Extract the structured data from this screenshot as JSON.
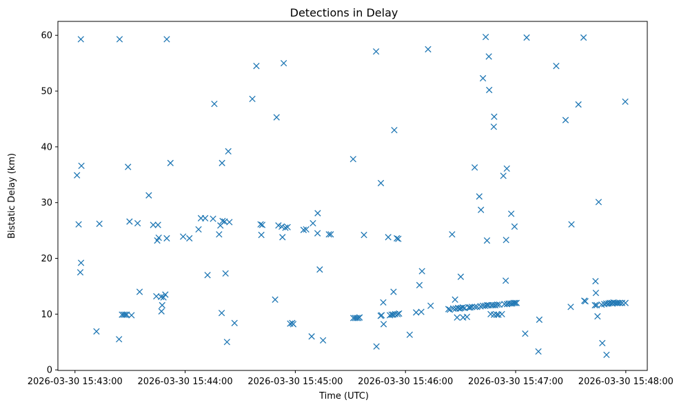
{
  "chart_data": {
    "type": "scatter",
    "title": "Detections in Delay",
    "xlabel": "Time (UTC)",
    "ylabel": "Bistatic Delay (km)",
    "marker": "x",
    "color": "#1f77b4",
    "xlim_seconds": [
      -9.3,
      311.7
    ],
    "ylim": [
      -0.1,
      62.5
    ],
    "x_ticks": [
      {
        "s": 0,
        "label": "2026-03-30 15:43:00"
      },
      {
        "s": 60,
        "label": "2026-03-30 15:44:00"
      },
      {
        "s": 120,
        "label": "2026-03-30 15:45:00"
      },
      {
        "s": 180,
        "label": "2026-03-30 15:46:00"
      },
      {
        "s": 240,
        "label": "2026-03-30 15:47:00"
      },
      {
        "s": 300,
        "label": "2026-03-30 15:48:00"
      }
    ],
    "y_ticks": [
      {
        "v": 0,
        "label": "0"
      },
      {
        "v": 10,
        "label": "10"
      },
      {
        "v": 20,
        "label": "20"
      },
      {
        "v": 30,
        "label": "30"
      },
      {
        "v": 40,
        "label": "40"
      },
      {
        "v": 50,
        "label": "50"
      },
      {
        "v": 60,
        "label": "60"
      }
    ],
    "x_unit": "seconds after 2026-03-30 15:43:00 UTC",
    "points": [
      [
        1.1,
        34.9
      ],
      [
        2.0,
        26.1
      ],
      [
        2.9,
        17.5
      ],
      [
        3.2,
        59.3
      ],
      [
        3.3,
        19.2
      ],
      [
        3.5,
        36.6
      ],
      [
        11.7,
        6.9
      ],
      [
        13.3,
        26.2
      ],
      [
        24.3,
        59.3
      ],
      [
        24.0,
        5.5
      ],
      [
        25.6,
        9.9
      ],
      [
        26.5,
        9.9
      ],
      [
        27.4,
        9.9
      ],
      [
        28.2,
        9.9
      ],
      [
        28.9,
        36.4
      ],
      [
        29.7,
        26.6
      ],
      [
        30.8,
        9.8
      ],
      [
        34.1,
        26.3
      ],
      [
        35.2,
        14.0
      ],
      [
        40.2,
        31.3
      ],
      [
        42.6,
        26.0
      ],
      [
        44.3,
        13.2
      ],
      [
        44.8,
        23.2
      ],
      [
        45.2,
        26.0
      ],
      [
        45.6,
        23.7
      ],
      [
        46.9,
        13.1
      ],
      [
        47.1,
        10.5
      ],
      [
        47.5,
        11.6
      ],
      [
        48.2,
        13.0
      ],
      [
        49.2,
        13.5
      ],
      [
        50.0,
        23.6
      ],
      [
        50.0,
        59.3
      ],
      [
        52.0,
        37.1
      ],
      [
        58.9,
        23.9
      ],
      [
        62.3,
        23.6
      ],
      [
        67.3,
        25.2
      ],
      [
        68.6,
        27.2
      ],
      [
        70.9,
        27.2
      ],
      [
        72.2,
        17.0
      ],
      [
        75.2,
        27.1
      ],
      [
        75.9,
        47.7
      ],
      [
        78.5,
        24.3
      ],
      [
        79.2,
        25.9
      ],
      [
        79.9,
        10.2
      ],
      [
        80.1,
        37.1
      ],
      [
        80.4,
        26.7
      ],
      [
        81.5,
        26.6
      ],
      [
        82.0,
        17.3
      ],
      [
        82.8,
        5.0
      ],
      [
        83.5,
        39.2
      ],
      [
        84.1,
        26.5
      ],
      [
        86.9,
        8.4
      ],
      [
        96.6,
        48.6
      ],
      [
        98.8,
        54.5
      ],
      [
        101.1,
        26.1
      ],
      [
        101.5,
        24.2
      ],
      [
        102.0,
        26.0
      ],
      [
        109.0,
        12.6
      ],
      [
        109.8,
        45.3
      ],
      [
        110.8,
        25.9
      ],
      [
        112.6,
        25.7
      ],
      [
        113.0,
        23.8
      ],
      [
        113.7,
        55.0
      ],
      [
        114.6,
        25.5
      ],
      [
        115.8,
        25.6
      ],
      [
        117.2,
        8.3
      ],
      [
        118.3,
        8.4
      ],
      [
        118.9,
        8.2
      ],
      [
        124.5,
        25.1
      ],
      [
        125.9,
        25.2
      ],
      [
        128.9,
        6.0
      ],
      [
        129.6,
        26.3
      ],
      [
        132.1,
        24.5
      ],
      [
        132.2,
        28.1
      ],
      [
        133.3,
        18.0
      ],
      [
        135.1,
        5.3
      ],
      [
        138.3,
        24.3
      ],
      [
        139.3,
        24.3
      ],
      [
        151.5,
        37.8
      ],
      [
        151.6,
        9.3
      ],
      [
        152.5,
        9.3
      ],
      [
        153.4,
        9.3
      ],
      [
        154.3,
        9.3
      ],
      [
        155.0,
        9.4
      ],
      [
        157.4,
        24.2
      ],
      [
        164.0,
        57.1
      ],
      [
        164.2,
        4.2
      ],
      [
        166.6,
        33.5
      ],
      [
        166.5,
        9.7
      ],
      [
        167.0,
        9.8
      ],
      [
        167.9,
        12.1
      ],
      [
        168.1,
        8.2
      ],
      [
        170.6,
        23.8
      ],
      [
        171.5,
        9.8
      ],
      [
        172.5,
        9.9
      ],
      [
        173.3,
        9.9
      ],
      [
        173.5,
        14.0
      ],
      [
        173.9,
        43.0
      ],
      [
        174.4,
        10.0
      ],
      [
        175.3,
        23.6
      ],
      [
        175.7,
        10.0
      ],
      [
        176.1,
        23.5
      ],
      [
        176.5,
        10.1
      ],
      [
        182.3,
        6.3
      ],
      [
        185.8,
        10.3
      ],
      [
        187.6,
        15.2
      ],
      [
        188.6,
        10.4
      ],
      [
        189.0,
        17.7
      ],
      [
        192.3,
        57.5
      ],
      [
        193.7,
        11.5
      ],
      [
        203.4,
        10.9
      ],
      [
        204.2,
        10.8
      ],
      [
        205.4,
        24.3
      ],
      [
        206.0,
        11.0
      ],
      [
        207.0,
        12.6
      ],
      [
        207.4,
        11.0
      ],
      [
        208.1,
        9.4
      ],
      [
        208.6,
        11.1
      ],
      [
        209.5,
        11.0
      ],
      [
        210.1,
        16.7
      ],
      [
        210.3,
        11.1
      ],
      [
        211.4,
        9.4
      ],
      [
        211.2,
        11.2
      ],
      [
        212.2,
        11.1
      ],
      [
        213.5,
        9.5
      ],
      [
        214.5,
        11.2
      ],
      [
        215.3,
        11.2
      ],
      [
        216.2,
        11.3
      ],
      [
        217.7,
        36.3
      ],
      [
        217.8,
        11.3
      ],
      [
        219.0,
        11.3
      ],
      [
        220.2,
        31.1
      ],
      [
        221.1,
        28.7
      ],
      [
        220.9,
        11.4
      ],
      [
        222.2,
        52.3
      ],
      [
        222.2,
        11.5
      ],
      [
        223.4,
        11.5
      ],
      [
        223.7,
        59.7
      ],
      [
        224.4,
        23.2
      ],
      [
        224.4,
        11.6
      ],
      [
        225.4,
        56.2
      ],
      [
        225.3,
        11.6
      ],
      [
        225.6,
        50.2
      ],
      [
        226.4,
        10.0
      ],
      [
        226.8,
        11.6
      ],
      [
        227.8,
        11.6
      ],
      [
        228.1,
        43.6
      ],
      [
        228.3,
        45.4
      ],
      [
        228.2,
        9.9
      ],
      [
        228.9,
        11.6
      ],
      [
        229.7,
        9.9
      ],
      [
        230.0,
        11.7
      ],
      [
        230.6,
        9.9
      ],
      [
        231.1,
        11.7
      ],
      [
        232.5,
        10.0
      ],
      [
        233.3,
        34.8
      ],
      [
        233.9,
        11.8
      ],
      [
        234.6,
        16.0
      ],
      [
        234.8,
        23.3
      ],
      [
        235.2,
        36.1
      ],
      [
        235.3,
        11.8
      ],
      [
        236.2,
        11.9
      ],
      [
        237.2,
        11.9
      ],
      [
        237.6,
        28.0
      ],
      [
        238.1,
        11.9
      ],
      [
        238.9,
        12.0
      ],
      [
        239.4,
        25.7
      ],
      [
        239.7,
        12.0
      ],
      [
        240.5,
        12.0
      ],
      [
        246.0,
        59.6
      ],
      [
        245.2,
        6.5
      ],
      [
        252.9,
        9.0
      ],
      [
        252.4,
        3.3
      ],
      [
        262.1,
        54.5
      ],
      [
        267.2,
        44.8
      ],
      [
        270.0,
        11.3
      ],
      [
        270.4,
        26.1
      ],
      [
        274.2,
        47.6
      ],
      [
        277.0,
        59.6
      ],
      [
        277.4,
        12.4
      ],
      [
        278.0,
        12.3
      ],
      [
        283.2,
        11.6
      ],
      [
        283.5,
        15.9
      ],
      [
        283.7,
        13.8
      ],
      [
        284.1,
        11.6
      ],
      [
        284.6,
        9.6
      ],
      [
        285.2,
        30.1
      ],
      [
        286.8,
        11.7
      ],
      [
        287.2,
        4.8
      ],
      [
        288.3,
        11.8
      ],
      [
        289.4,
        11.9
      ],
      [
        289.5,
        2.7
      ],
      [
        290.5,
        11.9
      ],
      [
        291.3,
        12.0
      ],
      [
        292.3,
        12.0
      ],
      [
        292.7,
        11.9
      ],
      [
        293.3,
        12.1
      ],
      [
        294.1,
        12.0
      ],
      [
        295.0,
        12.0
      ],
      [
        295.9,
        12.0
      ],
      [
        296.8,
        12.0
      ],
      [
        298.0,
        12.0
      ],
      [
        299.7,
        48.1
      ],
      [
        299.8,
        12.0
      ]
    ]
  }
}
